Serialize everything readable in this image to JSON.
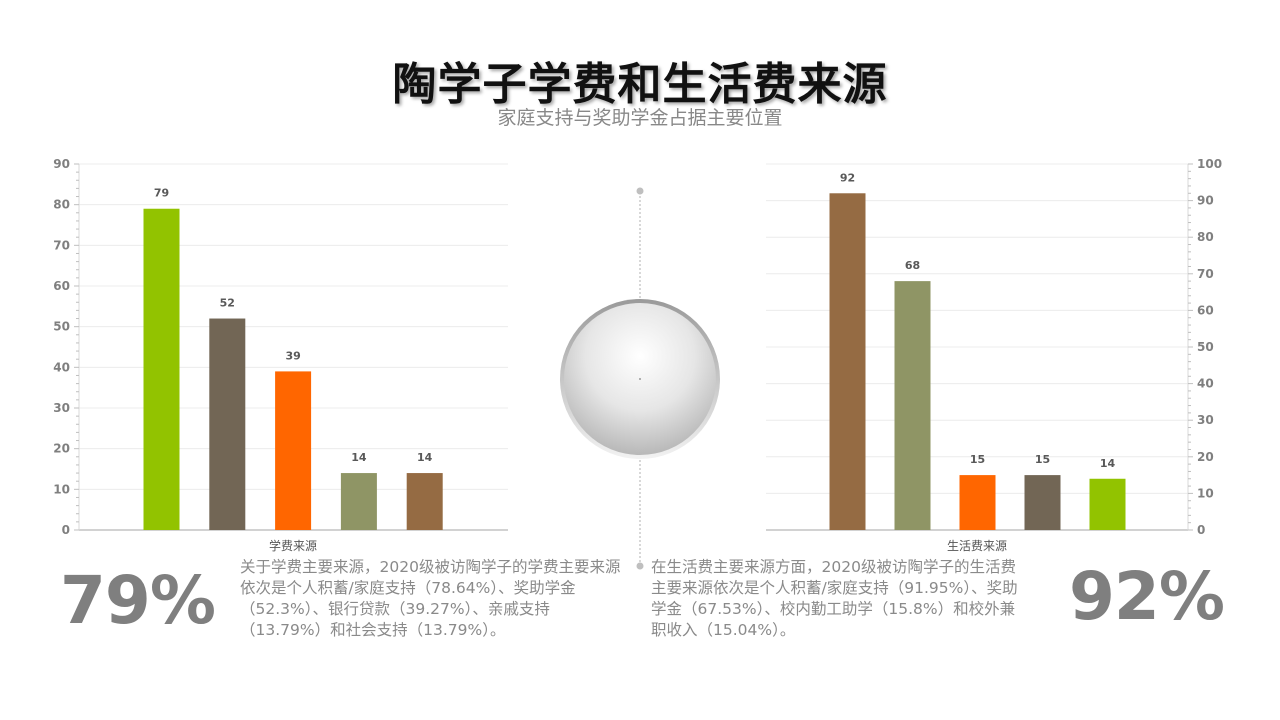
{
  "title": "陶学子学费和生活费来源",
  "subtitle": "家庭支持与奖助学金占据主要位置",
  "chart_data": [
    {
      "type": "bar",
      "xlabel": "学费来源",
      "ylim": [
        0,
        90
      ],
      "yticks": [
        0,
        10,
        20,
        30,
        40,
        50,
        60,
        70,
        80,
        90
      ],
      "axis_side": "left",
      "grid": true,
      "values": [
        79,
        52,
        39,
        14,
        14
      ],
      "colors": [
        "#92c300",
        "#726655",
        "#ff6600",
        "#8f9565",
        "#956b43"
      ]
    },
    {
      "type": "bar",
      "xlabel": "生活费来源",
      "ylim": [
        0,
        100
      ],
      "yticks": [
        0,
        10,
        20,
        30,
        40,
        50,
        60,
        70,
        80,
        90,
        100
      ],
      "axis_side": "right",
      "grid": true,
      "values": [
        92,
        68,
        15,
        15,
        14
      ],
      "colors": [
        "#956b43",
        "#8f9565",
        "#ff6600",
        "#726655",
        "#92c300"
      ]
    }
  ],
  "left_summary": {
    "percent": "79%",
    "text": "关于学费主要来源，2020级被访陶学子的学费主要来源依次是个人积蓄/家庭支持（78.64%）、奖助学金（52.3%）、银行贷款（39.27%）、亲戚支持（13.79%）和社会支持（13.79%）。"
  },
  "right_summary": {
    "percent": "92%",
    "text": "在生活费主要来源方面，2020级被访陶学子的生活费主要来源依次是个人积蓄/家庭支持（91.95%）、奖助学金（67.53%）、校内勤工助学（15.8%）和校外兼职收入（15.04%）。"
  }
}
